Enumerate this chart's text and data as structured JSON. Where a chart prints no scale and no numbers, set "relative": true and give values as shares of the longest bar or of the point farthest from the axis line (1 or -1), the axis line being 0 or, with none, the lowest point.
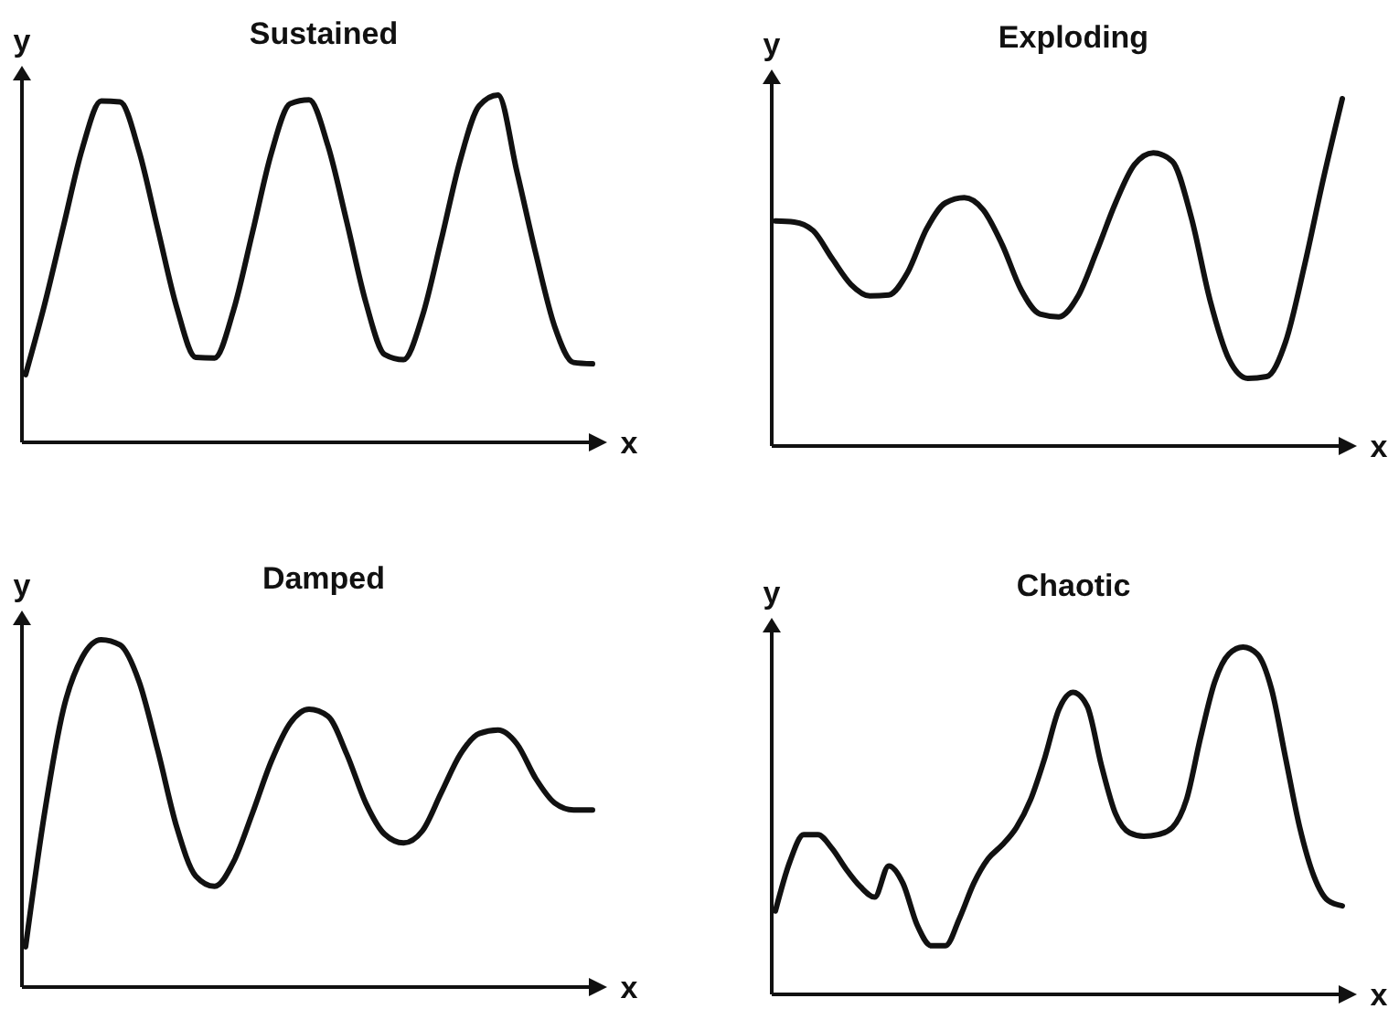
{
  "chart_data": [
    {
      "type": "line",
      "title": "Sustained",
      "xlabel": "x",
      "ylabel": "y",
      "relative": true,
      "color": "#111111",
      "categories": [
        null,
        null,
        null,
        null,
        null,
        null,
        null,
        null,
        null,
        null,
        null,
        null,
        null,
        null,
        null,
        null,
        null,
        null,
        null,
        null,
        null,
        null,
        null,
        null,
        null,
        null,
        null,
        null,
        null,
        null,
        null
      ],
      "values": [
        0.195,
        0.396,
        0.622,
        0.846,
        0.983,
        0.98,
        0.839,
        0.613,
        0.388,
        0.245,
        0.243,
        0.38,
        0.603,
        0.832,
        0.975,
        0.986,
        0.854,
        0.634,
        0.404,
        0.253,
        0.238,
        0.364,
        0.584,
        0.813,
        0.969,
        1,
        0.779,
        0.543,
        0.333,
        0.23,
        0.226
      ]
    },
    {
      "type": "line",
      "title": "Exploding",
      "xlabel": "x",
      "ylabel": "y",
      "relative": true,
      "color": "#111111",
      "categories": [
        null,
        null,
        null,
        null,
        null,
        null,
        null,
        null,
        null,
        null,
        null,
        null,
        null,
        null,
        null,
        null,
        null,
        null,
        null,
        null,
        null,
        null,
        null,
        null,
        null,
        null,
        null,
        null,
        null,
        null,
        null
      ],
      "values": [
        0.648,
        0.645,
        0.62,
        0.54,
        0.465,
        0.432,
        0.435,
        0.5,
        0.625,
        0.7,
        0.715,
        0.68,
        0.58,
        0.45,
        0.38,
        0.372,
        0.43,
        0.56,
        0.7,
        0.81,
        0.844,
        0.82,
        0.66,
        0.42,
        0.25,
        0.195,
        0.2,
        0.3,
        0.52,
        0.77,
        1
      ]
    },
    {
      "type": "line",
      "title": "Damped",
      "xlabel": "x",
      "ylabel": "y",
      "relative": true,
      "color": "#111111",
      "categories": [
        null,
        null,
        null,
        null,
        null,
        null,
        null,
        null,
        null,
        null,
        null,
        null,
        null,
        null,
        null,
        null,
        null,
        null,
        null,
        null,
        null,
        null,
        null,
        null,
        null,
        null,
        null,
        null,
        null,
        null,
        null
      ],
      "values": [
        0.116,
        0.5,
        0.8,
        0.95,
        1,
        0.985,
        0.88,
        0.68,
        0.46,
        0.32,
        0.29,
        0.36,
        0.5,
        0.65,
        0.76,
        0.8,
        0.78,
        0.67,
        0.53,
        0.44,
        0.415,
        0.45,
        0.56,
        0.67,
        0.73,
        0.74,
        0.7,
        0.6,
        0.53,
        0.51,
        0.51
      ]
    },
    {
      "type": "line",
      "title": "Chaotic",
      "xlabel": "x",
      "ylabel": "y",
      "relative": true,
      "color": "#111111",
      "categories": [
        null,
        null,
        null,
        null,
        null,
        null,
        null,
        null,
        null,
        null,
        null,
        null,
        null,
        null,
        null,
        null,
        null,
        null,
        null,
        null,
        null,
        null,
        null,
        null,
        null,
        null,
        null,
        null,
        null,
        null,
        null,
        null,
        null,
        null,
        null,
        null,
        null,
        null,
        null,
        null,
        null
      ],
      "values": [
        0.24,
        0.38,
        0.46,
        0.46,
        0.42,
        0.36,
        0.31,
        0.28,
        0.37,
        0.32,
        0.2,
        0.14,
        0.14,
        0.22,
        0.32,
        0.39,
        0.43,
        0.48,
        0.56,
        0.68,
        0.82,
        0.87,
        0.83,
        0.66,
        0.52,
        0.465,
        0.455,
        0.46,
        0.48,
        0.56,
        0.74,
        0.9,
        0.98,
        1,
        0.98,
        0.88,
        0.68,
        0.48,
        0.34,
        0.27,
        0.255
      ]
    }
  ]
}
